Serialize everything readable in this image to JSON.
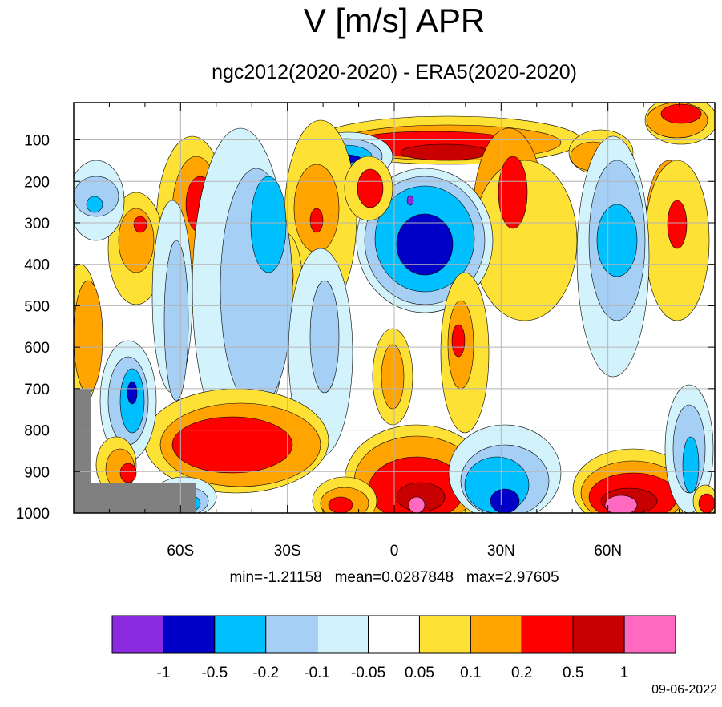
{
  "title": "V [m/s] APR",
  "subtitle": "ngc2012(2020-2020) - ERA5(2020-2020)",
  "stats": {
    "min_label": "min=-1.21158",
    "mean_label": "mean=0.0287848",
    "max_label": "max=2.97605"
  },
  "date": "09-06-2022",
  "chart_data": {
    "type": "heatmap",
    "title": "V [m/s] APR",
    "subtitle": "ngc2012(2020-2020) - ERA5(2020-2020)",
    "xlabel": "",
    "ylabel": "",
    "x_axis": {
      "range": [
        -90,
        90
      ],
      "ticks": [
        -60,
        -30,
        0,
        30,
        60
      ],
      "tick_labels": [
        "60S",
        "30S",
        "0",
        "30N",
        "60N"
      ]
    },
    "y_axis": {
      "range": [
        1000,
        10
      ],
      "ticks": [
        100,
        200,
        300,
        400,
        500,
        600,
        700,
        800,
        900,
        1000
      ],
      "tick_labels": [
        "100",
        "200",
        "300",
        "400",
        "500",
        "600",
        "700",
        "800",
        "900",
        "1000"
      ]
    },
    "grid": true,
    "contour_levels": [
      -1,
      -0.5,
      -0.2,
      -0.1,
      -0.05,
      0.05,
      0.1,
      0.2,
      0.5,
      1
    ],
    "level_labels": [
      "-1",
      "-0.5",
      "-0.2",
      "-0.1",
      "-0.05",
      "0.05",
      "0.1",
      "0.2",
      "0.5",
      "1"
    ],
    "colors": [
      "#8a2be2",
      "#0000c8",
      "#00bfff",
      "#a6cff5",
      "#d2f2fc",
      "#ffffff",
      "#fde135",
      "#ffa400",
      "#ff0000",
      "#c80000",
      "#ff69c0"
    ],
    "missing_color": "#808080",
    "stats": {
      "min": -1.21158,
      "mean": 0.0287848,
      "max": 2.97605
    }
  }
}
